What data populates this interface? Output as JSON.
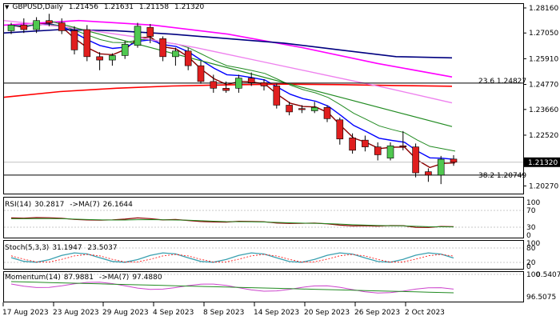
{
  "header": {
    "symbol": "GBPUSD,Daily",
    "open": "1.21456",
    "high": "1.21631",
    "low": "1.21158",
    "close": "1.21320"
  },
  "indicators": {
    "rsi": {
      "label": "RSI(14)",
      "value": "30.2817",
      "ma_label": "->MA(7)",
      "ma_value": "26.1644"
    },
    "stoch": {
      "label": "Stoch(5,3,3)",
      "value": "31.1947",
      "signal_value": "23.5037"
    },
    "momentum": {
      "label": "Momentum(14)",
      "value": "87.9881",
      "ma_label": "->MA(7)",
      "ma_value": "97.4880"
    }
  },
  "fib_labels": [
    {
      "text": "23.6 1.24827",
      "price": 1.24827
    },
    {
      "text": "38.2 1.20749",
      "price": 1.20749
    }
  ],
  "current_price_label": "1.21320",
  "chart_data": {
    "type": "candlestick",
    "price_axis": {
      "ticks": [
        "1.28160",
        "1.27050",
        "1.25910",
        "1.24770",
        "1.23660",
        "1.22520",
        "1.20270"
      ],
      "range": [
        1.2,
        1.283
      ]
    },
    "x_ticks": [
      "17 Aug 2023",
      "23 Aug 2023",
      "29 Aug 2023",
      "4 Sep 2023",
      "8 Sep 2023",
      "14 Sep 2023",
      "20 Sep 2023",
      "26 Sep 2023",
      "2 Oct 2023"
    ],
    "horizontal_lines": [
      1.24827,
      1.20749,
      1.2132
    ],
    "candles": [
      {
        "o": 1.2715,
        "h": 1.275,
        "l": 1.27,
        "c": 1.274
      },
      {
        "o": 1.274,
        "h": 1.277,
        "l": 1.2705,
        "c": 1.272
      },
      {
        "o": 1.272,
        "h": 1.2775,
        "l": 1.2705,
        "c": 1.276
      },
      {
        "o": 1.276,
        "h": 1.279,
        "l": 1.2735,
        "c": 1.275
      },
      {
        "o": 1.275,
        "h": 1.277,
        "l": 1.27,
        "c": 1.2715
      },
      {
        "o": 1.2715,
        "h": 1.2735,
        "l": 1.261,
        "c": 1.263
      },
      {
        "o": 1.272,
        "h": 1.274,
        "l": 1.258,
        "c": 1.26
      },
      {
        "o": 1.26,
        "h": 1.262,
        "l": 1.254,
        "c": 1.2585
      },
      {
        "o": 1.2585,
        "h": 1.2615,
        "l": 1.256,
        "c": 1.2605
      },
      {
        "o": 1.2605,
        "h": 1.267,
        "l": 1.259,
        "c": 1.2655
      },
      {
        "o": 1.265,
        "h": 1.275,
        "l": 1.264,
        "c": 1.2735
      },
      {
        "o": 1.273,
        "h": 1.2745,
        "l": 1.266,
        "c": 1.269
      },
      {
        "o": 1.268,
        "h": 1.269,
        "l": 1.258,
        "c": 1.26
      },
      {
        "o": 1.26,
        "h": 1.264,
        "l": 1.256,
        "c": 1.2625
      },
      {
        "o": 1.2625,
        "h": 1.264,
        "l": 1.254,
        "c": 1.256
      },
      {
        "o": 1.256,
        "h": 1.258,
        "l": 1.248,
        "c": 1.249
      },
      {
        "o": 1.249,
        "h": 1.252,
        "l": 1.244,
        "c": 1.246
      },
      {
        "o": 1.246,
        "h": 1.249,
        "l": 1.244,
        "c": 1.245
      },
      {
        "o": 1.246,
        "h": 1.252,
        "l": 1.244,
        "c": 1.2505
      },
      {
        "o": 1.2505,
        "h": 1.253,
        "l": 1.247,
        "c": 1.2485
      },
      {
        "o": 1.2485,
        "h": 1.25,
        "l": 1.245,
        "c": 1.247
      },
      {
        "o": 1.247,
        "h": 1.248,
        "l": 1.237,
        "c": 1.2385
      },
      {
        "o": 1.2385,
        "h": 1.24,
        "l": 1.234,
        "c": 1.2355
      },
      {
        "o": 1.237,
        "h": 1.2385,
        "l": 1.235,
        "c": 1.2365
      },
      {
        "o": 1.236,
        "h": 1.24,
        "l": 1.235,
        "c": 1.2375
      },
      {
        "o": 1.2375,
        "h": 1.2385,
        "l": 1.231,
        "c": 1.2325
      },
      {
        "o": 1.232,
        "h": 1.233,
        "l": 1.221,
        "c": 1.2235
      },
      {
        "o": 1.224,
        "h": 1.226,
        "l": 1.217,
        "c": 1.2185
      },
      {
        "o": 1.223,
        "h": 1.225,
        "l": 1.218,
        "c": 1.22
      },
      {
        "o": 1.22,
        "h": 1.222,
        "l": 1.214,
        "c": 1.2165
      },
      {
        "o": 1.215,
        "h": 1.222,
        "l": 1.214,
        "c": 1.2205
      },
      {
        "o": 1.2205,
        "h": 1.227,
        "l": 1.2185,
        "c": 1.22
      },
      {
        "o": 1.22,
        "h": 1.2215,
        "l": 1.2065,
        "c": 1.2085
      },
      {
        "o": 1.209,
        "h": 1.2105,
        "l": 1.2045,
        "c": 1.2075
      },
      {
        "o": 1.2075,
        "h": 1.216,
        "l": 1.2035,
        "c": 1.2145
      },
      {
        "o": 1.2146,
        "h": 1.2163,
        "l": 1.2116,
        "c": 1.2132
      }
    ]
  }
}
